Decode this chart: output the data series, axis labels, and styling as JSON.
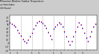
{
  "title": "Milwaukee Weather Outdoor Temperature vs Heat Index (24 Hours)",
  "outer_bg_color": "#cccccc",
  "plot_bg_color": "#ffffff",
  "temp_color": "#ff0000",
  "heat_color": "#0000ff",
  "black_color": "#000000",
  "grid_color": "#888888",
  "legend_bar_blue": "#0000ff",
  "legend_bar_red": "#ff0000",
  "ylim": [
    -20,
    75
  ],
  "xlim": [
    0,
    48
  ],
  "times": [
    0,
    1,
    2,
    3,
    4,
    5,
    6,
    7,
    8,
    9,
    10,
    11,
    12,
    13,
    14,
    15,
    16,
    17,
    18,
    19,
    20,
    21,
    22,
    23,
    24,
    25,
    26,
    27,
    28,
    29,
    30,
    31,
    32,
    33,
    34,
    35,
    36,
    37,
    38,
    39,
    40,
    41,
    42,
    43,
    44,
    45,
    46,
    47
  ],
  "temp": [
    55,
    52,
    48,
    44,
    35,
    28,
    20,
    10,
    5,
    2,
    8,
    18,
    28,
    38,
    48,
    55,
    60,
    58,
    54,
    48,
    40,
    30,
    20,
    10,
    38,
    45,
    50,
    55,
    52,
    45,
    32,
    18,
    5,
    -5,
    5,
    18,
    32,
    45,
    55,
    50,
    40,
    28,
    15,
    5,
    18,
    32,
    45,
    52
  ],
  "heat": [
    53,
    50,
    46,
    42,
    33,
    26,
    18,
    8,
    3,
    0,
    6,
    16,
    26,
    36,
    46,
    53,
    58,
    56,
    52,
    46,
    38,
    28,
    18,
    8,
    36,
    43,
    48,
    53,
    50,
    43,
    30,
    16,
    3,
    -7,
    3,
    16,
    30,
    43,
    53,
    48,
    38,
    26,
    13,
    3,
    16,
    30,
    43,
    50
  ],
  "yticks": [
    -20,
    -10,
    0,
    10,
    20,
    30,
    40,
    50,
    60,
    70
  ],
  "xtick_positions": [
    0,
    2,
    4,
    6,
    8,
    10,
    12,
    14,
    16,
    18,
    20,
    22,
    24,
    26,
    28,
    30,
    32,
    34,
    36,
    38,
    40,
    42,
    44,
    46
  ],
  "xtick_labels": [
    "1",
    "",
    "5",
    "",
    "",
    "",
    "1",
    "",
    "5",
    "",
    "",
    "",
    "1",
    "",
    "5",
    "",
    "",
    "",
    "1",
    "",
    "5",
    "",
    "",
    ""
  ],
  "grid_positions": [
    6,
    12,
    18,
    24,
    30,
    36,
    42
  ]
}
